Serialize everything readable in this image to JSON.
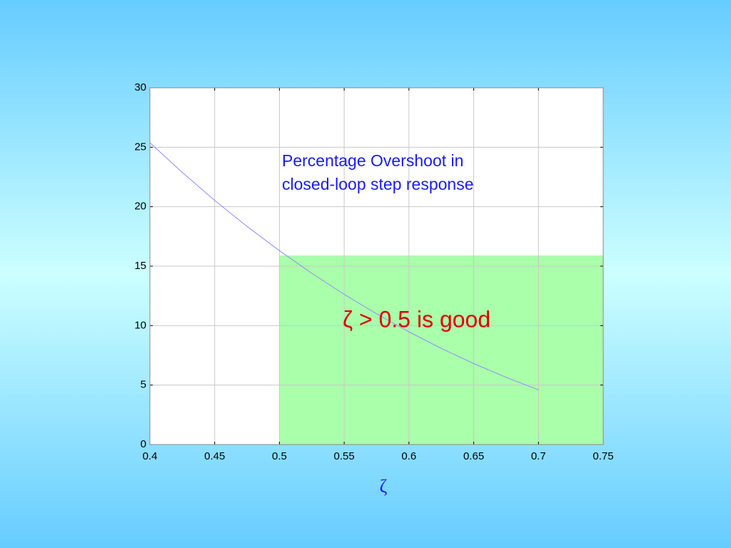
{
  "chart_data": {
    "type": "line",
    "x": [
      0.4,
      0.425,
      0.45,
      0.475,
      0.5,
      0.525,
      0.55,
      0.575,
      0.6,
      0.625,
      0.65,
      0.675,
      0.7
    ],
    "series": [
      {
        "color": "#8c8cff",
        "values": [
          25.38,
          22.88,
          20.53,
          18.34,
          16.3,
          14.4,
          12.63,
          10.99,
          9.48,
          8.08,
          6.81,
          5.65,
          4.6
        ]
      }
    ],
    "xlim": [
      0.4,
      0.75
    ],
    "ylim": [
      0,
      30
    ],
    "xticks": [
      0.4,
      0.45,
      0.5,
      0.55,
      0.6,
      0.65,
      0.7,
      0.75
    ],
    "yticks": [
      0,
      5,
      10,
      15,
      20,
      25,
      30
    ],
    "grid": true,
    "xlabel": "ζ",
    "highlight": {
      "x": [
        0.5,
        0.75
      ],
      "y": [
        0,
        15.9
      ],
      "color": "#aaffaa"
    },
    "annotation": [
      "Percentage Overshoot in",
      "closed-loop step response"
    ],
    "highlight_label": "ζ > 0.5 is good"
  }
}
